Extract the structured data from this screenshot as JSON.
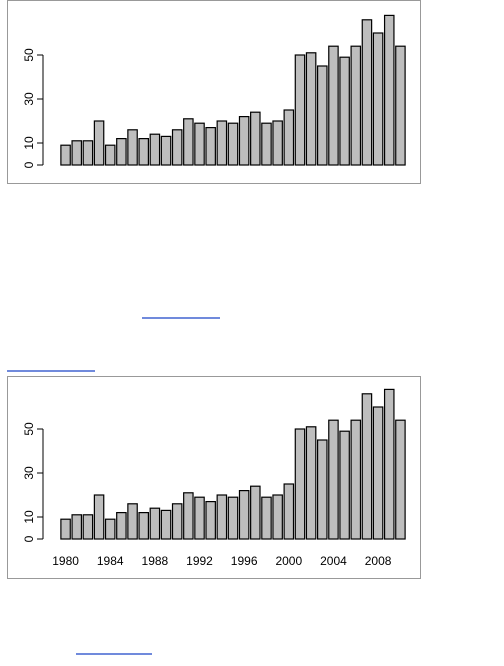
{
  "chart_data": [
    {
      "type": "bar",
      "categories": [
        null,
        null,
        null,
        null,
        null,
        null,
        null,
        null,
        null,
        null,
        null,
        null,
        null,
        null,
        null,
        null,
        null,
        null,
        null,
        null,
        null,
        null,
        null,
        null,
        null,
        null,
        null,
        null,
        null,
        null,
        null
      ],
      "values": [
        9,
        11,
        11,
        20,
        9,
        12,
        16,
        12,
        14,
        13,
        16,
        21,
        19,
        17,
        20,
        19,
        22,
        24,
        19,
        20,
        25,
        50,
        51,
        45,
        54,
        49,
        54,
        66,
        60,
        68,
        54
      ],
      "color": "#bebebe",
      "ylim": [
        0,
        70
      ],
      "yticks": [
        0,
        10,
        30,
        50
      ]
    },
    {
      "type": "bar",
      "categories": [
        "1980",
        null,
        null,
        null,
        "1984",
        null,
        null,
        null,
        "1988",
        null,
        null,
        null,
        "1992",
        null,
        null,
        null,
        "1996",
        null,
        null,
        null,
        "2000",
        null,
        null,
        null,
        "2004",
        null,
        null,
        null,
        "2008",
        null,
        null
      ],
      "values": [
        9,
        11,
        11,
        20,
        9,
        12,
        16,
        12,
        14,
        13,
        16,
        21,
        19,
        17,
        20,
        19,
        22,
        24,
        19,
        20,
        25,
        50,
        51,
        45,
        54,
        49,
        54,
        66,
        60,
        68,
        54
      ],
      "color": "#bebebe",
      "ylim": [
        0,
        70
      ],
      "yticks": [
        0,
        10,
        30,
        50
      ]
    }
  ]
}
